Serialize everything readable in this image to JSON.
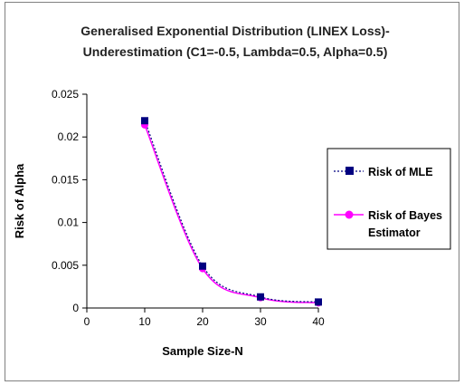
{
  "chart_data": {
    "type": "line",
    "title": [
      "Generalised Exponential Distribution (LINEX Loss)-",
      "Underestimation (C1=-0.5, Lambda=0.5, Alpha=0.5)"
    ],
    "xlabel": "Sample Size-N",
    "ylabel": "Risk of Alpha",
    "xlim": [
      0,
      40
    ],
    "ylim": [
      0,
      0.025
    ],
    "x_ticks": [
      "0",
      "10",
      "20",
      "30",
      "40"
    ],
    "y_ticks": [
      "0",
      "0.005",
      "0.01",
      "0.015",
      "0.02",
      "0.025"
    ],
    "grid": false,
    "legend_position": "right",
    "x": [
      10,
      20,
      30,
      40
    ],
    "series": [
      {
        "name": "Risk of MLE",
        "values": [
          0.0219,
          0.0049,
          0.0013,
          0.0007
        ],
        "color": "#000080",
        "line_style": "dotted",
        "marker": "square"
      },
      {
        "name": [
          "Risk of Bayes",
          "Estimator"
        ],
        "values": [
          0.0214,
          0.0046,
          0.0012,
          0.0006
        ],
        "color": "#ff00ff",
        "line_style": "solid",
        "marker": "circle"
      }
    ]
  }
}
